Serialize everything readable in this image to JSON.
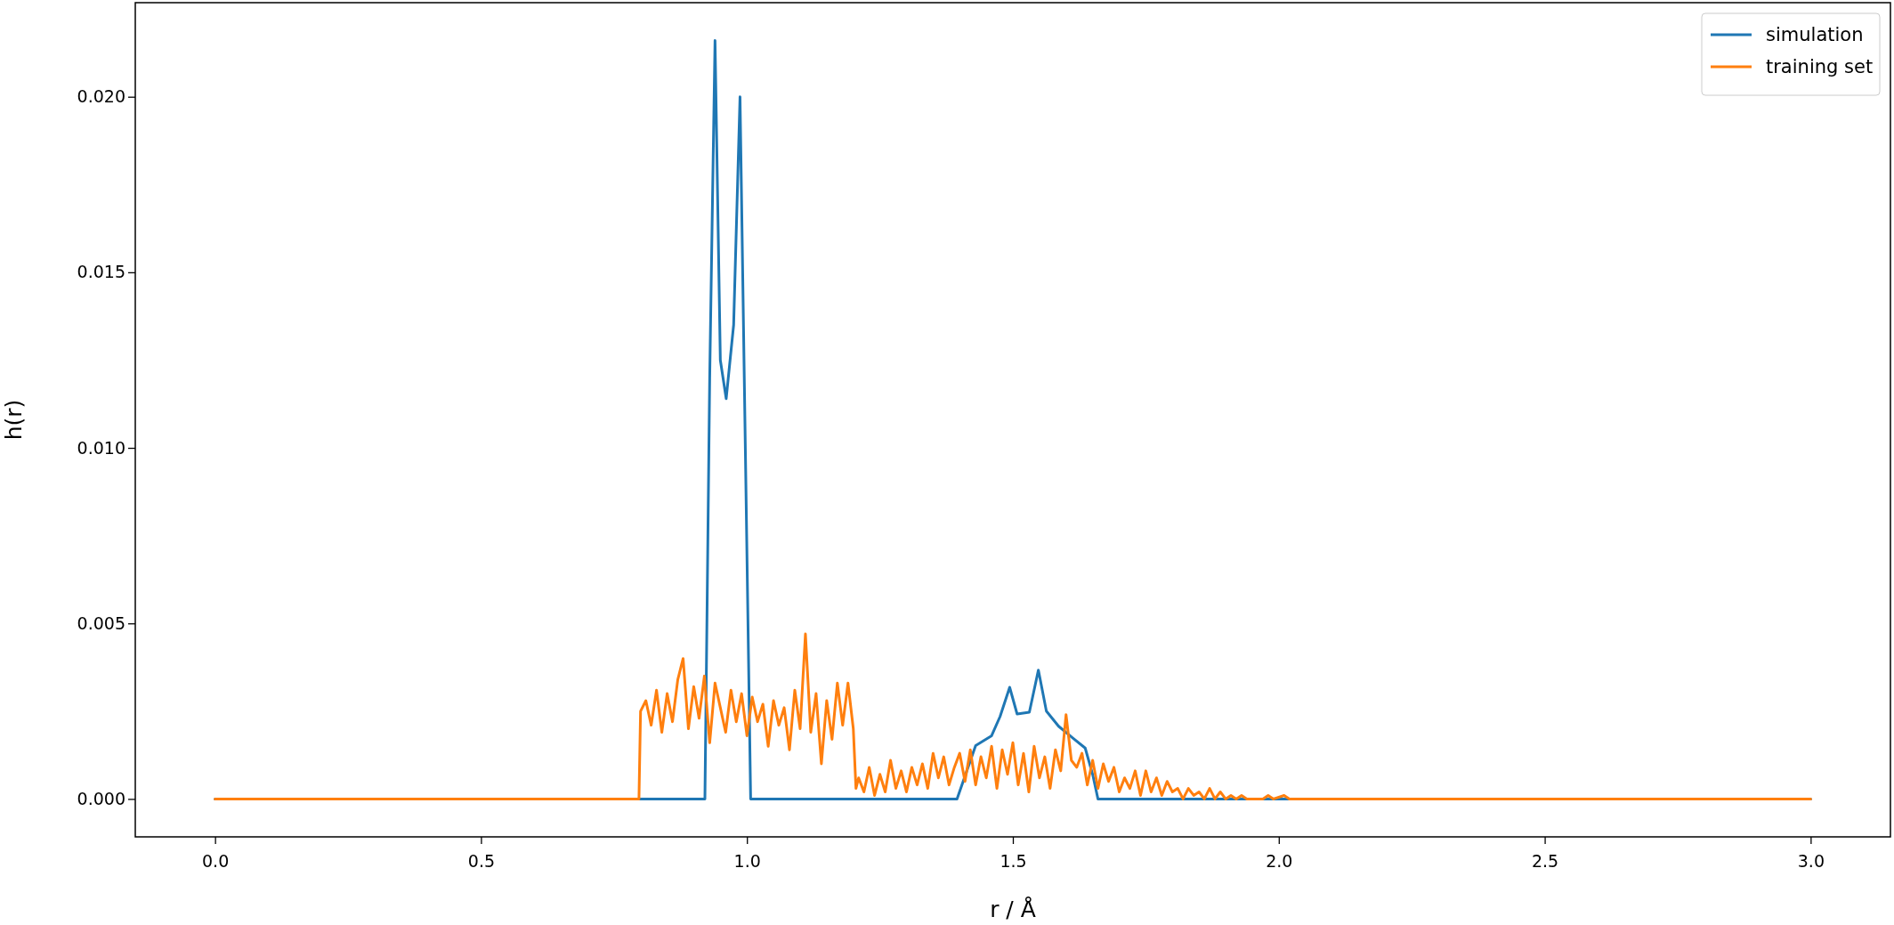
{
  "chart_data": {
    "type": "line",
    "xlabel": "r / Å",
    "ylabel": "h(r)",
    "xlim": [
      -0.15,
      3.15
    ],
    "ylim": [
      -0.00108,
      0.02268
    ],
    "xticks": [
      {
        "value": 0,
        "label": "0.0"
      },
      {
        "value": 0.5,
        "label": "0.5"
      },
      {
        "value": 1,
        "label": "1.0"
      },
      {
        "value": 1.5,
        "label": "1.5"
      },
      {
        "value": 2,
        "label": "2.0"
      },
      {
        "value": 2.5,
        "label": "2.5"
      },
      {
        "value": 3,
        "label": "3.0"
      }
    ],
    "yticks": [
      {
        "value": 0,
        "label": "0.000"
      },
      {
        "value": 0.005,
        "label": "0.005"
      },
      {
        "value": 0.01,
        "label": "0.010"
      },
      {
        "value": 0.015,
        "label": "0.015"
      },
      {
        "value": 0.02,
        "label": "0.020"
      }
    ],
    "grid": false,
    "legend": "top right",
    "line_style": "solid",
    "marker": "none",
    "series": [
      {
        "name": "simulation",
        "color": "#1f77b4",
        "x": [
          0,
          0.921,
          0.93,
          0.94,
          0.95,
          0.961,
          0.975,
          0.987,
          0.995,
          1.007,
          1.395,
          1.43,
          1.46,
          1.476,
          1.494,
          1.508,
          1.531,
          1.548,
          1.563,
          1.586,
          1.613,
          1.636,
          1.65,
          1.66,
          3.0
        ],
        "values": [
          0,
          0,
          0.012,
          0.0216,
          0.0125,
          0.0114,
          0.0135,
          0.02,
          0.012,
          0,
          0,
          0.00152,
          0.0018,
          0.00235,
          0.00318,
          0.00242,
          0.00247,
          0.00367,
          0.0025,
          0.00207,
          0.00173,
          0.00145,
          0.0007,
          0,
          0
        ]
      },
      {
        "name": "training set",
        "color": "#ff7f0e",
        "x": [
          0,
          0.797,
          0.8,
          0.81,
          0.82,
          0.83,
          0.84,
          0.85,
          0.86,
          0.87,
          0.88,
          0.89,
          0.9,
          0.91,
          0.92,
          0.93,
          0.94,
          0.95,
          0.96,
          0.97,
          0.98,
          0.99,
          1.0,
          1.01,
          1.02,
          1.03,
          1.04,
          1.05,
          1.06,
          1.07,
          1.08,
          1.09,
          1.1,
          1.11,
          1.12,
          1.13,
          1.14,
          1.15,
          1.16,
          1.17,
          1.18,
          1.19,
          1.2,
          1.205,
          1.21,
          1.22,
          1.23,
          1.24,
          1.25,
          1.26,
          1.27,
          1.28,
          1.29,
          1.3,
          1.31,
          1.32,
          1.33,
          1.34,
          1.35,
          1.36,
          1.37,
          1.38,
          1.39,
          1.4,
          1.41,
          1.42,
          1.43,
          1.44,
          1.45,
          1.46,
          1.47,
          1.48,
          1.49,
          1.5,
          1.51,
          1.52,
          1.53,
          1.54,
          1.55,
          1.56,
          1.57,
          1.58,
          1.59,
          1.6,
          1.61,
          1.62,
          1.63,
          1.64,
          1.65,
          1.66,
          1.67,
          1.68,
          1.69,
          1.7,
          1.71,
          1.72,
          1.73,
          1.74,
          1.75,
          1.76,
          1.77,
          1.78,
          1.79,
          1.8,
          1.81,
          1.82,
          1.83,
          1.84,
          1.85,
          1.86,
          1.87,
          1.88,
          1.89,
          1.9,
          1.91,
          1.92,
          1.93,
          1.94,
          1.97,
          1.98,
          1.99,
          2.01,
          2.02,
          3.0
        ],
        "values": [
          0,
          0,
          0.0025,
          0.0028,
          0.0021,
          0.0031,
          0.0019,
          0.003,
          0.0022,
          0.0034,
          0.004,
          0.002,
          0.0032,
          0.0023,
          0.0035,
          0.0016,
          0.0033,
          0.0026,
          0.0019,
          0.0031,
          0.0022,
          0.003,
          0.0018,
          0.0029,
          0.0022,
          0.0027,
          0.0015,
          0.0028,
          0.0021,
          0.0026,
          0.0014,
          0.0031,
          0.002,
          0.0047,
          0.0019,
          0.003,
          0.001,
          0.0028,
          0.0017,
          0.0033,
          0.0021,
          0.0033,
          0.002,
          0.0003,
          0.0006,
          0.0002,
          0.0009,
          0.0001,
          0.0007,
          0.0002,
          0.0011,
          0.0003,
          0.0008,
          0.0002,
          0.0009,
          0.0004,
          0.001,
          0.0003,
          0.0013,
          0.0006,
          0.0012,
          0.0004,
          0.0009,
          0.0013,
          0.0005,
          0.0014,
          0.0004,
          0.0012,
          0.0006,
          0.0015,
          0.0003,
          0.0014,
          0.0007,
          0.0016,
          0.0004,
          0.0013,
          0.0002,
          0.0015,
          0.0006,
          0.0012,
          0.0003,
          0.0014,
          0.0008,
          0.0024,
          0.0011,
          0.0009,
          0.0013,
          0.0004,
          0.0011,
          0.0003,
          0.001,
          0.0005,
          0.0009,
          0.0002,
          0.0006,
          0.0003,
          0.0008,
          0.0001,
          0.0008,
          0.0002,
          0.0006,
          0.0001,
          0.0005,
          0.0002,
          0.0003,
          0,
          0.0003,
          0.0001,
          0.0002,
          0,
          0.0003,
          0,
          0.0002,
          0,
          0.0001,
          0,
          0.0001,
          0,
          0,
          0.0001,
          0,
          0.0001,
          0,
          0
        ]
      }
    ]
  }
}
